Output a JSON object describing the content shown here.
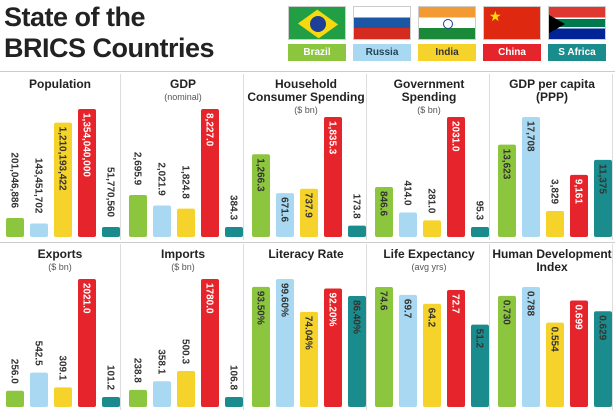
{
  "title_line1": "State of the",
  "title_line2": "BRICS Countries",
  "countries": [
    "Brazil",
    "Russia",
    "India",
    "China",
    "S Africa"
  ],
  "colors": [
    "#8cc63e",
    "#a9d9f2",
    "#f6d32a",
    "#e5252b",
    "#1b8c8d"
  ],
  "chart_data": [
    {
      "type": "bar",
      "title": "Population",
      "unit": "",
      "categories": [
        "Brazil",
        "Russia",
        "India",
        "China",
        "S Africa"
      ],
      "values": [
        201046886,
        143451702,
        1210193422,
        1354040000,
        51770560
      ],
      "labels": [
        "201,046,886",
        "143,451,702",
        "1,210,193,422",
        "1,354,040,000",
        "51,770,560"
      ]
    },
    {
      "type": "bar",
      "title": "GDP",
      "unit": "(nominal)",
      "categories": [
        "Brazil",
        "Russia",
        "India",
        "China",
        "S Africa"
      ],
      "values": [
        2695.9,
        2021.9,
        1824.8,
        8227.0,
        384.3
      ],
      "labels": [
        "2,695.9",
        "2,021.9",
        "1,824.8",
        "8,227.0",
        "384.3"
      ]
    },
    {
      "type": "bar",
      "title": "Household Consumer Spending",
      "unit": "($ bn)",
      "categories": [
        "Brazil",
        "Russia",
        "India",
        "China",
        "S Africa"
      ],
      "values": [
        1266.3,
        671.6,
        737.9,
        1835.3,
        173.8
      ],
      "labels": [
        "1,266.3",
        "671.6",
        "737.9",
        "1,835.3",
        "173.8"
      ]
    },
    {
      "type": "bar",
      "title": "Government Spending",
      "unit": "($ bn)",
      "categories": [
        "Brazil",
        "Russia",
        "India",
        "China",
        "S Africa"
      ],
      "values": [
        846.6,
        414.0,
        281.0,
        2031.0,
        95.3
      ],
      "labels": [
        "846.6",
        "414.0",
        "281.0",
        "2031.0",
        "95.3"
      ]
    },
    {
      "type": "bar",
      "title": "GDP per capita (PPP)",
      "unit": "",
      "categories": [
        "Brazil",
        "Russia",
        "India",
        "China",
        "S Africa"
      ],
      "values": [
        13623,
        17708,
        3829,
        9161,
        11375
      ],
      "labels": [
        "13,623",
        "17,708",
        "3,829",
        "9,161",
        "11,375"
      ]
    },
    {
      "type": "bar",
      "title": "Exports",
      "unit": "($ bn)",
      "categories": [
        "Brazil",
        "Russia",
        "India",
        "China",
        "S Africa"
      ],
      "values": [
        256.0,
        542.5,
        309.1,
        2021.0,
        101.2
      ],
      "labels": [
        "256.0",
        "542.5",
        "309.1",
        "2021.0",
        "101.2"
      ]
    },
    {
      "type": "bar",
      "title": "Imports",
      "unit": "($ bn)",
      "categories": [
        "Brazil",
        "Russia",
        "India",
        "China",
        "S Africa"
      ],
      "values": [
        238.8,
        358.1,
        500.3,
        1780.0,
        106.8
      ],
      "labels": [
        "238.8",
        "358.1",
        "500.3",
        "1780.0",
        "106.8"
      ]
    },
    {
      "type": "bar",
      "title": "Literacy Rate",
      "unit": "",
      "categories": [
        "Brazil",
        "Russia",
        "India",
        "China",
        "S Africa"
      ],
      "values": [
        93.5,
        99.6,
        74.04,
        92.2,
        86.4
      ],
      "labels": [
        "93.50%",
        "99.60%",
        "74.04%",
        "92.20%",
        "86.40%"
      ]
    },
    {
      "type": "bar",
      "title": "Life Expectancy",
      "unit": "(avg yrs)",
      "categories": [
        "Brazil",
        "Russia",
        "India",
        "China",
        "S Africa"
      ],
      "values": [
        74.6,
        69.7,
        64.2,
        72.7,
        51.2
      ],
      "labels": [
        "74.6",
        "69.7",
        "64.2",
        "72.7",
        "51.2"
      ]
    },
    {
      "type": "bar",
      "title": "Human Development Index",
      "unit": "",
      "categories": [
        "Brazil",
        "Russia",
        "India",
        "China",
        "S Africa"
      ],
      "values": [
        0.73,
        0.788,
        0.554,
        0.699,
        0.629
      ],
      "labels": [
        "0.730",
        "0.788",
        "0.554",
        "0.699",
        "0.629"
      ]
    }
  ]
}
